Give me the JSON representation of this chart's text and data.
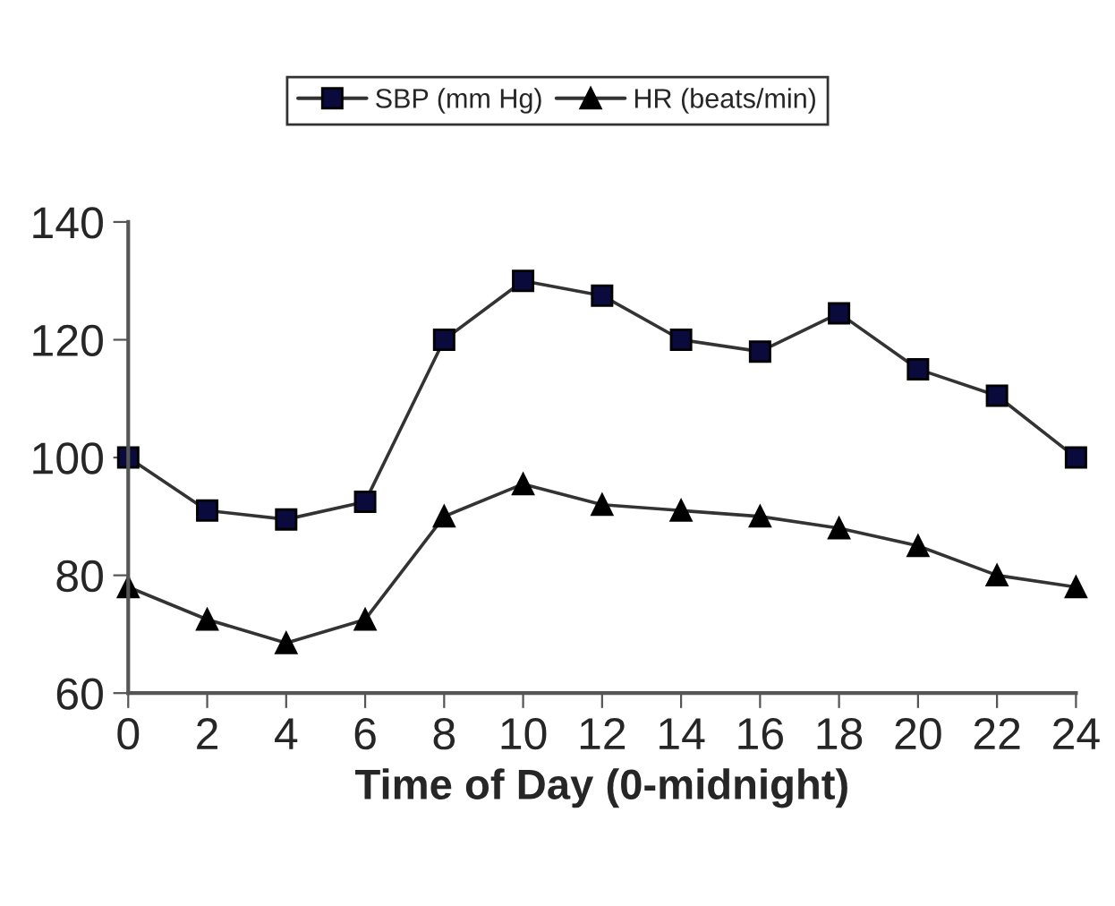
{
  "chart_data": {
    "type": "line",
    "xlabel": "Time of Day (0-midnight)",
    "x": [
      0,
      2,
      4,
      6,
      8,
      10,
      12,
      14,
      16,
      18,
      20,
      22,
      24
    ],
    "series": [
      {
        "name": "SBP (mm Hg)",
        "color": "#0a0a3c",
        "marker": "square",
        "values": [
          100,
          91,
          89.5,
          92.5,
          120,
          130,
          127.5,
          120,
          118,
          124.5,
          115,
          110.5,
          100
        ]
      },
      {
        "name": "HR (beats/min)",
        "color": "#000000",
        "marker": "triangle",
        "values": [
          78,
          72.5,
          68.5,
          72.5,
          90,
          95.5,
          92,
          91,
          90,
          88,
          85,
          80,
          78
        ]
      }
    ],
    "xlim": [
      0,
      24
    ],
    "xticks": [
      0,
      2,
      4,
      6,
      8,
      10,
      12,
      14,
      16,
      18,
      20,
      22,
      24
    ],
    "ylim": [
      60,
      140
    ],
    "yticks": [
      60,
      80,
      100,
      120,
      140
    ],
    "grid": false,
    "legend": "top",
    "line_style": "solid"
  }
}
